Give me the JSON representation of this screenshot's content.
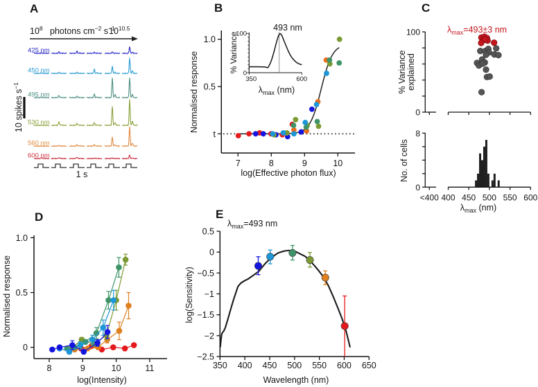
{
  "figure": {
    "panel_letters": [
      "A",
      "B",
      "C",
      "D",
      "E"
    ]
  },
  "chart_data": [
    {
      "panel": "A",
      "type": "line",
      "description": "Firing-rate traces for six wavelengths across six increasing intensity steps",
      "intensity_axis": {
        "low_base": "10",
        "low_exp": "8",
        "unit": "photons cm",
        "unit_exp1": "−2",
        "unit2": " s",
        "unit_exp2": "−1",
        "high_base": "10",
        "high_exp": "10.5"
      },
      "scale_bar": {
        "label": "10 spikes s",
        "label_exp": "−1",
        "value_spikes_per_s": 10
      },
      "time_bar_label": "1 s",
      "intensity_steps": 6,
      "series": [
        {
          "name": "425 nm",
          "color": "#2b2bc8",
          "peak_rates": [
            0.3,
            0.7,
            1.0,
            0.5,
            0.7,
            3.3
          ]
        },
        {
          "name": "450 nm",
          "color": "#2a9bd4",
          "peak_rates": [
            0.3,
            0.5,
            0.5,
            2.0,
            3.3,
            7.3
          ]
        },
        {
          "name": "495 nm",
          "color": "#4b8e80",
          "peak_rates": [
            0.3,
            1.0,
            0.7,
            1.7,
            9.3,
            9.3
          ]
        },
        {
          "name": "530 nm",
          "color": "#8aa03a",
          "peak_rates": [
            0.0,
            1.7,
            1.0,
            1.3,
            9.0,
            12.3
          ]
        },
        {
          "name": "560 nm",
          "color": "#e0893c",
          "peak_rates": [
            0.0,
            0.3,
            0.7,
            0.7,
            4.3,
            9.3
          ]
        },
        {
          "name": "600 nm",
          "color": "#c9303e",
          "peak_rates": [
            0.5,
            0.5,
            0.7,
            0.3,
            0.3,
            1.7
          ]
        }
      ]
    },
    {
      "panel": "B",
      "type": "scatter",
      "xlabel": "log(Effective photon flux)",
      "ylabel": "Normalised response",
      "xlim": [
        6.5,
        10.5
      ],
      "ylim": [
        -0.2,
        1.1
      ],
      "xticks": [
        7,
        8,
        9,
        10
      ],
      "xtick_labels": [
        "7",
        "8",
        "9",
        "10"
      ],
      "yticks": [
        0,
        0.5,
        1.0
      ],
      "ytick_labels": [
        "t",
        "0.5",
        "1.0"
      ],
      "threshold_line": {
        "value": 0,
        "label": "t",
        "style": "dotted"
      },
      "fit": {
        "type": "sigmoid",
        "max": 0.95,
        "x50": 9.5,
        "slope": 0.17,
        "x_range": [
          7.0,
          10.05
        ]
      },
      "series": [
        {
          "name": "600 nm",
          "color": "#e5191c",
          "points": [
            [
              7.01,
              -0.02
            ],
            [
              7.33,
              0.0
            ],
            [
              7.65,
              0.01
            ],
            [
              7.99,
              0.0
            ],
            [
              8.33,
              -0.01
            ],
            [
              8.63,
              0.1
            ]
          ]
        },
        {
          "name": "425 nm",
          "color": "#1414e0",
          "points": [
            [
              7.53,
              0.0
            ],
            [
              7.76,
              0.0
            ],
            [
              8.14,
              -0.01
            ],
            [
              8.49,
              -0.03
            ],
            [
              8.9,
              0.02
            ],
            [
              9.22,
              0.26
            ]
          ]
        },
        {
          "name": "530 nm",
          "color": "#7b9a33",
          "points": [
            [
              8.08,
              -0.01
            ],
            [
              8.47,
              0.01
            ],
            [
              8.73,
              0.15
            ],
            [
              9.08,
              0.09
            ],
            [
              9.42,
              0.08
            ],
            [
              9.76,
              0.74
            ],
            [
              10.05,
              1.0
            ]
          ]
        },
        {
          "name": "560 nm",
          "color": "#ea6e1c",
          "points": [
            [
              8.68,
              0.04
            ],
            [
              9.06,
              0.03
            ],
            [
              9.4,
              0.34
            ],
            [
              9.65,
              0.78
            ]
          ]
        },
        {
          "name": "495 nm",
          "color": "#3e9468",
          "points": [
            [
              8.67,
              0.09
            ],
            [
              9.05,
              0.07
            ],
            [
              9.38,
              0.13
            ],
            [
              9.75,
              0.78
            ],
            [
              10.04,
              0.75
            ]
          ]
        },
        {
          "name": "450 nm",
          "color": "#1c96d6",
          "points": [
            [
              8.04,
              0.0
            ],
            [
              8.36,
              0.01
            ],
            [
              8.68,
              0.0
            ],
            [
              9.02,
              0.12
            ],
            [
              9.36,
              0.31
            ],
            [
              9.66,
              0.64
            ]
          ]
        }
      ]
    },
    {
      "panel": "B-inset",
      "type": "line",
      "title": "493 nm",
      "xlabel": {
        "symbol": "λ",
        "sub": "max",
        "unit": " (nm)"
      },
      "ylabel": "% Variance",
      "xlim": [
        350,
        600
      ],
      "ylim": [
        0,
        100
      ],
      "xtick_labels": [
        "350",
        "600"
      ],
      "ytick_labels": [
        "0",
        "100"
      ],
      "peak_marker": 493,
      "x": [
        350,
        370,
        390,
        410,
        428,
        436,
        440,
        447,
        455,
        462,
        470,
        478,
        485,
        490,
        495,
        500,
        507,
        515,
        525,
        535,
        545,
        555,
        565,
        575,
        585,
        595,
        600
      ],
      "y": [
        15,
        15,
        15,
        14.8,
        14.5,
        12.5,
        13.5,
        20,
        30,
        42,
        57,
        74,
        87,
        95,
        99.5,
        99,
        93,
        82,
        69,
        56,
        45,
        37,
        31,
        26,
        23,
        21,
        20.5
      ]
    },
    {
      "panel": "C",
      "type": "scatter",
      "title": {
        "symbol": "λ",
        "sub": "max",
        "rest": "=493±3 nm"
      },
      "ylabel_line1": "% Variance",
      "ylabel_line2": "explained",
      "xlim": [
        400,
        600
      ],
      "ylim": [
        0,
        100
      ],
      "yticks": [
        0,
        20,
        40,
        60,
        80,
        100
      ],
      "ytick_labels": [
        "0",
        "100"
      ],
      "colors": {
        "highlight": "#c4161c",
        "other": "#555555"
      },
      "highlighted": [
        [
          480.5,
          92.9
        ],
        [
          487.9,
          94.0
        ],
        [
          494.0,
          92.3
        ],
        [
          485.0,
          89.7
        ],
        [
          480.0,
          86.2
        ],
        [
          495.6,
          89.1
        ],
        [
          511.4,
          86.5
        ],
        [
          490.0,
          90.8
        ]
      ],
      "others": [
        [
          477.8,
          76.2
        ],
        [
          490.0,
          76.2
        ],
        [
          497.3,
          78.8
        ],
        [
          499.0,
          74.5
        ],
        [
          491.8,
          71.4
        ],
        [
          516.5,
          79.4
        ],
        [
          512.0,
          71.9
        ],
        [
          522.0,
          71.0
        ],
        [
          469.9,
          61.3
        ],
        [
          482.2,
          65.6
        ],
        [
          488.9,
          61.9
        ],
        [
          474.4,
          58.1
        ],
        [
          483.3,
          60.4
        ],
        [
          491.8,
          53.0
        ],
        [
          494.0,
          43.8
        ],
        [
          500.7,
          44.4
        ],
        [
          481.0,
          24.9
        ]
      ]
    },
    {
      "panel": "C-histogram",
      "type": "bar",
      "xlabel": {
        "symbol": "λ",
        "sub": "max",
        "unit": " (nm)"
      },
      "ylabel": "No. of cells",
      "xtick_labels": [
        "<400",
        "400",
        "450",
        "500",
        "550",
        "600"
      ],
      "xticks": [
        400,
        450,
        500,
        550,
        600
      ],
      "ylim": [
        0,
        8
      ],
      "yticks": [
        0,
        2,
        4,
        6,
        8
      ],
      "ytick_labels": [
        "0",
        "8"
      ],
      "bin_width": 5,
      "bin_starts": [
        465,
        470,
        475,
        480,
        485,
        490,
        495,
        500,
        505,
        510,
        515,
        520
      ],
      "counts": [
        1,
        2,
        5,
        4,
        6,
        7,
        2,
        0,
        1,
        2,
        0,
        1
      ],
      "bar_color": "#1e1e1e"
    },
    {
      "panel": "D",
      "type": "line",
      "xlabel": "log(Intensity)",
      "ylabel": "Normalised response",
      "xlim": [
        7.5,
        11.5
      ],
      "ylim": [
        -0.1,
        1.0
      ],
      "xticks": [
        8,
        9,
        10,
        11
      ],
      "xtick_labels": [
        "8",
        "9",
        "10",
        "11"
      ],
      "yticks": [
        0,
        0.5,
        1.0
      ],
      "ytick_labels": [
        "0",
        "0.5",
        "1.0"
      ],
      "series": [
        {
          "name": "600 nm",
          "color": "#e5191c",
          "x": [
            8.95,
            9.26,
            9.57,
            9.91,
            10.26,
            10.53
          ],
          "y": [
            -0.01,
            0.01,
            -0.02,
            0.0,
            -0.01,
            0.02
          ],
          "err": [
            0.01,
            0.01,
            0.01,
            0.01,
            0.01,
            0.01
          ]
        },
        {
          "name": "560 nm",
          "color": "#e0801f",
          "x": [
            8.76,
            9.15,
            9.46,
            9.73,
            10.09,
            10.37
          ],
          "y": [
            -0.02,
            -0.01,
            0.0,
            0.07,
            0.15,
            0.38
          ],
          "err": [
            0.01,
            0.01,
            0.01,
            0.03,
            0.08,
            0.12
          ]
        },
        {
          "name": "530 nm",
          "color": "#7b9a33",
          "x": [
            8.7,
            8.97,
            9.33,
            9.71,
            10.0,
            10.28
          ],
          "y": [
            0.0,
            0.07,
            0.03,
            0.11,
            0.43,
            0.8
          ],
          "err": [
            0.01,
            0.02,
            0.02,
            0.04,
            0.09,
            0.05
          ]
        },
        {
          "name": "495 nm",
          "color": "#3e9468",
          "x": [
            8.53,
            8.76,
            9.08,
            9.41,
            9.77,
            10.08
          ],
          "y": [
            -0.01,
            0.0,
            0.05,
            0.13,
            0.43,
            0.73
          ],
          "err": [
            0.01,
            0.01,
            0.02,
            0.05,
            0.08,
            0.09
          ]
        },
        {
          "name": "450 nm",
          "color": "#1c96d6",
          "x": [
            8.31,
            8.6,
            8.93,
            9.29,
            9.61,
            9.92
          ],
          "y": [
            -0.01,
            -0.04,
            0.02,
            0.07,
            0.18,
            0.43
          ],
          "err": [
            0.01,
            0.02,
            0.03,
            0.04,
            0.07,
            0.09
          ]
        },
        {
          "name": "425 nm",
          "color": "#1414e0",
          "x": [
            8.09,
            8.31,
            8.69,
            9.03,
            9.44,
            9.74
          ],
          "y": [
            -0.02,
            0.0,
            0.02,
            -0.04,
            0.04,
            0.14
          ],
          "err": [
            0.01,
            0.01,
            0.04,
            0.01,
            0.03,
            0.06
          ]
        }
      ]
    },
    {
      "panel": "E",
      "type": "line",
      "title": {
        "symbol": "λ",
        "sub": "max",
        "rest": "=493 nm"
      },
      "xlabel": "Wavelength (nm)",
      "ylabel": "log(Sensitivity)",
      "xlim": [
        350,
        650
      ],
      "ylim": [
        -2.5,
        0.5
      ],
      "xticks": [
        350,
        400,
        450,
        500,
        550,
        600,
        650
      ],
      "xtick_labels": [
        "350",
        "400",
        "450",
        "500",
        "550",
        "600",
        "650"
      ],
      "yticks": [
        0.5,
        0,
        -0.5,
        -1,
        -1.5,
        -2,
        -2.5
      ],
      "ytick_labels": [
        "0.5",
        "0",
        "−0.5",
        "−1",
        "−1.5",
        "−2",
        "−2.5"
      ],
      "template_curve": {
        "x": [
          350.5,
          352,
          353.8,
          358,
          360.7,
          366,
          372,
          377,
          382,
          386.3,
          392,
          400.2,
          407,
          414.2,
          421,
          428.1,
          435,
          442,
          451,
          460.7,
          467,
          474.7,
          481,
          488.7,
          495,
          502.6,
          511,
          521.2,
          530,
          539.8,
          549,
          558.5,
          568,
          577,
          586,
          595.6,
          604,
          611.9
        ],
        "y": [
          -2.28,
          -2.1,
          -1.95,
          -1.88,
          -1.81,
          -1.6,
          -1.35,
          -1.15,
          -0.97,
          -0.82,
          -0.74,
          -0.68,
          -0.64,
          -0.58,
          -0.52,
          -0.46,
          -0.36,
          -0.26,
          -0.16,
          -0.07,
          -0.02,
          0.01,
          0.03,
          0.04,
          0.03,
          0.01,
          -0.04,
          -0.1,
          -0.19,
          -0.32,
          -0.45,
          -0.6,
          -0.8,
          -1.04,
          -1.3,
          -1.59,
          -1.9,
          -2.28
        ]
      },
      "points": [
        {
          "name": "425 nm",
          "wavelength": 427,
          "value": -0.33,
          "err_low": -0.54,
          "err_high": -0.11,
          "color": "#1414e0"
        },
        {
          "name": "450 nm",
          "wavelength": 451,
          "value": -0.11,
          "err_low": -0.28,
          "err_high": 0.05,
          "color": "#1c96d6"
        },
        {
          "name": "495 nm",
          "wavelength": 496,
          "value": -0.02,
          "err_low": -0.19,
          "err_high": 0.16,
          "color": "#3e9468"
        },
        {
          "name": "530 nm",
          "wavelength": 531,
          "value": -0.19,
          "err_low": -0.36,
          "err_high": -0.01,
          "color": "#7b9a33"
        },
        {
          "name": "560 nm",
          "wavelength": 562,
          "value": -0.61,
          "err_low": -0.78,
          "err_high": -0.45,
          "color": "#e0801f"
        },
        {
          "name": "600 nm",
          "wavelength": 601,
          "value": -1.77,
          "err_low": -2.5,
          "err_high": -1.05,
          "color": "#e5191c"
        }
      ]
    }
  ]
}
